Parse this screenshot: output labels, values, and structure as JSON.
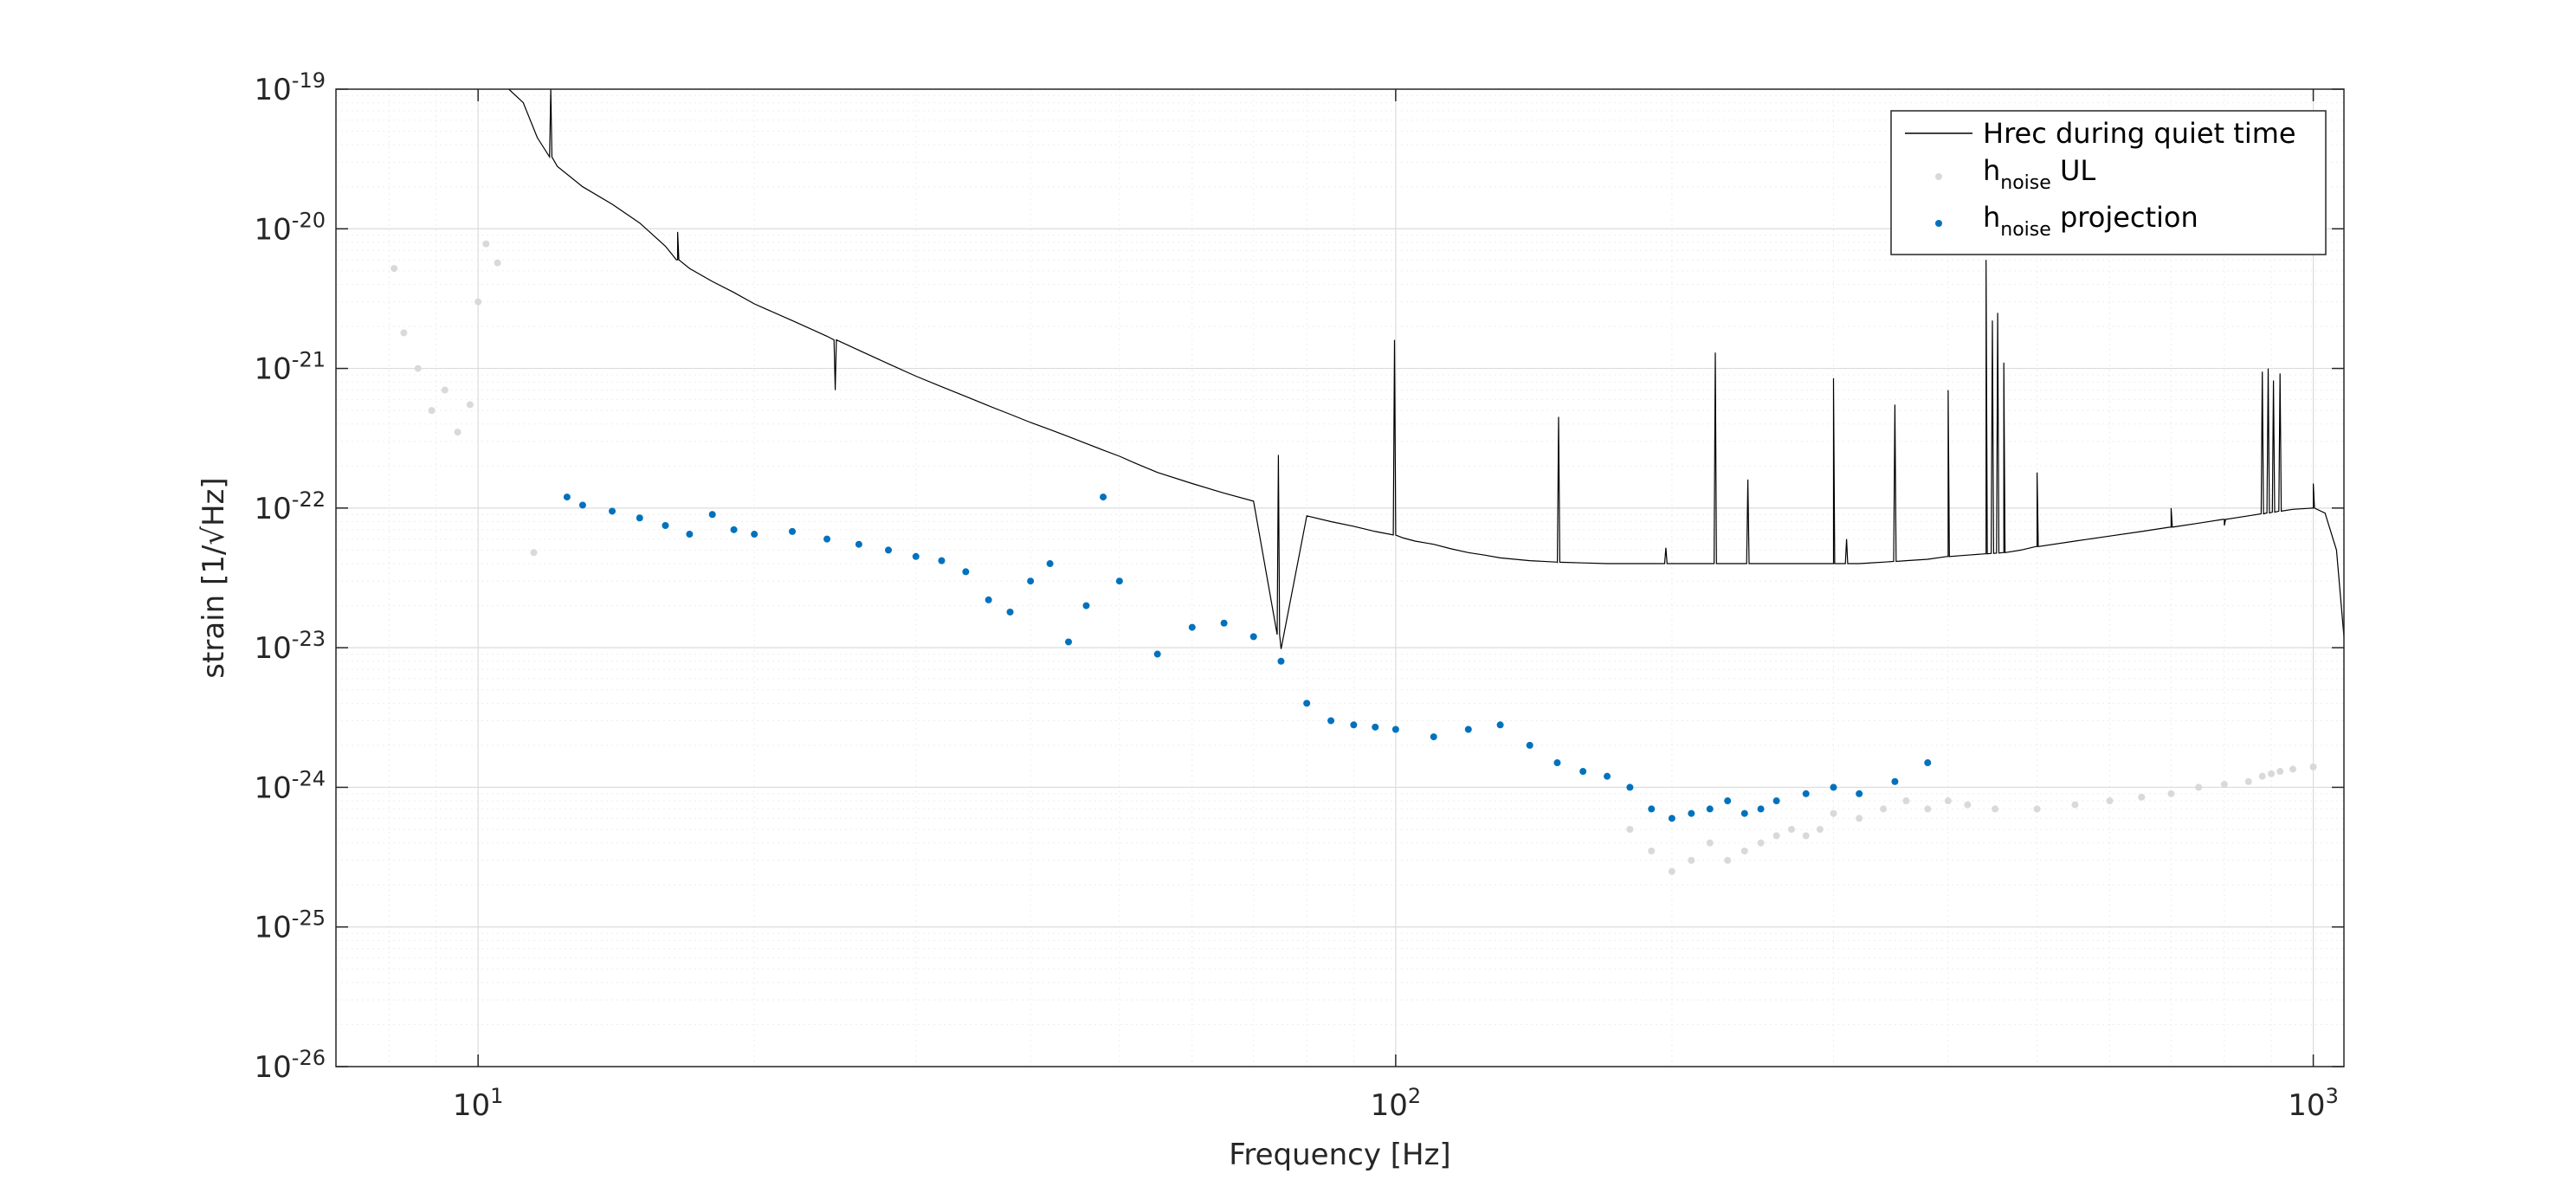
{
  "chart_data": {
    "type": "scatter",
    "xlabel": "Frequency [Hz]",
    "ylabel": "strain [1/√Hz]",
    "x_scale": "log",
    "y_scale": "log",
    "xlim": [
      7,
      1080
    ],
    "ylim": [
      1e-26,
      1e-19
    ],
    "grid": true,
    "legend_position": "top-right",
    "x_ticks": [
      {
        "value": 10,
        "base": "10",
        "exp": "1"
      },
      {
        "value": 100,
        "base": "10",
        "exp": "2"
      },
      {
        "value": 1000,
        "base": "10",
        "exp": "3"
      }
    ],
    "y_ticks": [
      {
        "value": 1e-19,
        "base": "10",
        "exp": "-19"
      },
      {
        "value": 1e-20,
        "base": "10",
        "exp": "-20"
      },
      {
        "value": 1e-21,
        "base": "10",
        "exp": "-21"
      },
      {
        "value": 1e-22,
        "base": "10",
        "exp": "-22"
      },
      {
        "value": 1e-23,
        "base": "10",
        "exp": "-23"
      },
      {
        "value": 1e-24,
        "base": "10",
        "exp": "-24"
      },
      {
        "value": 1e-25,
        "base": "10",
        "exp": "-25"
      },
      {
        "value": 1e-26,
        "base": "10",
        "exp": "-26"
      }
    ],
    "series": [
      {
        "name": "Hrec during quiet time",
        "type": "line",
        "color": "#000000",
        "x": [
          10.8,
          11.2,
          11.6,
          12.2,
          13,
          14,
          15,
          16,
          16.5,
          17,
          18,
          19,
          20,
          22,
          24,
          26,
          28,
          30,
          32,
          34,
          36,
          38,
          40,
          42,
          44,
          46,
          48,
          50,
          52,
          55,
          60,
          65,
          70,
          75,
          80,
          85,
          90,
          95,
          100,
          102,
          105,
          110,
          115,
          120,
          125,
          130,
          140,
          150,
          160,
          170,
          180,
          190,
          200,
          210,
          220,
          230,
          240,
          250,
          260,
          270,
          280,
          290,
          300,
          320,
          340,
          360,
          380,
          400,
          420,
          440,
          460,
          480,
          500,
          550,
          600,
          650,
          700,
          750,
          800,
          850,
          900,
          950,
          1000,
          1030,
          1060,
          1080
        ],
        "y": [
          1e-19,
          8e-20,
          4.5e-20,
          2.8e-20,
          2e-20,
          1.5e-20,
          1.1e-20,
          7.5e-21,
          6e-21,
          5.2e-21,
          4.2e-21,
          3.5e-21,
          2.9e-21,
          2.2e-21,
          1.7e-21,
          1.35e-21,
          1.08e-21,
          8.8e-22,
          7.4e-22,
          6.3e-22,
          5.4e-22,
          4.7e-22,
          4.1e-22,
          3.65e-22,
          3.25e-22,
          2.9e-22,
          2.6e-22,
          2.35e-22,
          2.1e-22,
          1.8e-22,
          1.5e-22,
          1.28e-22,
          1.12e-22,
          9.8e-24,
          8.8e-23,
          8e-23,
          7.4e-23,
          6.8e-23,
          6.4e-23,
          6.1e-23,
          5.8e-23,
          5.5e-23,
          5.1e-23,
          4.8e-23,
          4.6e-23,
          4.4e-23,
          4.2e-23,
          4.1e-23,
          4.05e-23,
          4e-23,
          4e-23,
          4e-23,
          4e-23,
          4e-23,
          4e-23,
          4e-23,
          4e-23,
          4e-23,
          4e-23,
          4e-23,
          4e-23,
          4e-23,
          4e-23,
          4e-23,
          4.1e-23,
          4.2e-23,
          4.3e-23,
          4.5e-23,
          4.6e-23,
          4.7e-23,
          4.8e-23,
          5e-23,
          5.3e-23,
          5.8e-23,
          6.3e-23,
          6.8e-23,
          7.3e-23,
          7.8e-23,
          8.3e-23,
          8.8e-23,
          9.3e-23,
          9.8e-23,
          1e-22,
          9.2e-23,
          5e-23,
          1.2e-23
        ],
        "peaks": [
          {
            "f": 12.0,
            "y": 1e-19
          },
          {
            "f": 16.5,
            "y": 9.5e-21
          },
          {
            "f": 24.5,
            "y": 7e-22
          },
          {
            "f": 74.5,
            "y": 2.4e-22
          },
          {
            "f": 99.7,
            "y": 1.6e-21
          },
          {
            "f": 150.5,
            "y": 4.5e-22
          },
          {
            "f": 197,
            "y": 5.2e-23
          },
          {
            "f": 223,
            "y": 1.3e-21
          },
          {
            "f": 242,
            "y": 1.6e-22
          },
          {
            "f": 300,
            "y": 8.5e-22
          },
          {
            "f": 310,
            "y": 6e-23
          },
          {
            "f": 350,
            "y": 5.5e-22
          },
          {
            "f": 400,
            "y": 7e-22
          },
          {
            "f": 440,
            "y": 6e-21
          },
          {
            "f": 447,
            "y": 2.2e-21
          },
          {
            "f": 453,
            "y": 2.5e-21
          },
          {
            "f": 460,
            "y": 1.1e-21
          },
          {
            "f": 500,
            "y": 1.8e-22
          },
          {
            "f": 700,
            "y": 1e-22
          },
          {
            "f": 800,
            "y": 7.5e-23
          },
          {
            "f": 880,
            "y": 9.5e-22
          },
          {
            "f": 893,
            "y": 1e-21
          },
          {
            "f": 905,
            "y": 8.2e-22
          },
          {
            "f": 920,
            "y": 9.2e-22
          },
          {
            "f": 1000,
            "y": 1.5e-22
          }
        ]
      },
      {
        "name": "h_noise UL",
        "type": "scatter",
        "color": "#d9d9d9",
        "x": [
          8.1,
          8.3,
          8.6,
          8.9,
          9.2,
          9.5,
          9.8,
          10.0,
          10.2,
          10.5,
          11.5,
          180,
          190,
          200,
          210,
          220,
          230,
          240,
          250,
          260,
          270,
          280,
          290,
          300,
          320,
          340,
          360,
          380,
          400,
          420,
          450,
          500,
          550,
          600,
          650,
          700,
          750,
          800,
          850,
          880,
          900,
          920,
          950,
          1000
        ],
        "y": [
          5.2e-21,
          1.8e-21,
          1e-21,
          5e-22,
          7e-22,
          3.5e-22,
          5.5e-22,
          3e-21,
          7.8e-21,
          5.7e-21,
          4.8e-23,
          5e-25,
          3.5e-25,
          2.5e-25,
          3e-25,
          4e-25,
          3e-25,
          3.5e-25,
          4e-25,
          4.5e-25,
          5e-25,
          4.5e-25,
          5e-25,
          6.5e-25,
          6e-25,
          7e-25,
          8e-25,
          7e-25,
          8e-25,
          7.5e-25,
          7e-25,
          7e-25,
          7.5e-25,
          8e-25,
          8.5e-25,
          9e-25,
          1e-24,
          1.05e-24,
          1.1e-24,
          1.2e-24,
          1.25e-24,
          1.3e-24,
          1.35e-24,
          1.4e-24
        ]
      },
      {
        "name": "h_noise projection",
        "type": "scatter",
        "color": "#0072bd",
        "x": [
          12.5,
          13,
          14,
          15,
          16,
          17,
          18,
          19,
          20,
          22,
          24,
          26,
          28,
          30,
          32,
          34,
          36,
          38,
          40,
          42,
          44,
          46,
          48,
          50,
          55,
          60,
          65,
          70,
          75,
          80,
          85,
          90,
          95,
          100,
          110,
          120,
          130,
          140,
          150,
          160,
          170,
          180,
          190,
          200,
          210,
          220,
          230,
          240,
          250,
          260,
          280,
          300,
          320,
          350,
          380
        ],
        "y": [
          1.2e-22,
          1.05e-22,
          9.5e-23,
          8.5e-23,
          7.5e-23,
          6.5e-23,
          9e-23,
          7e-23,
          6.5e-23,
          6.8e-23,
          6e-23,
          5.5e-23,
          5e-23,
          4.5e-23,
          4.2e-23,
          3.5e-23,
          2.2e-23,
          1.8e-23,
          3e-23,
          4e-23,
          1.1e-23,
          2e-23,
          1.2e-22,
          3e-23,
          9e-24,
          1.4e-23,
          1.5e-23,
          1.2e-23,
          8e-24,
          4e-24,
          3e-24,
          2.8e-24,
          2.7e-24,
          2.6e-24,
          2.3e-24,
          2.6e-24,
          2.8e-24,
          2e-24,
          1.5e-24,
          1.3e-24,
          1.2e-24,
          1e-24,
          7e-25,
          6e-25,
          6.5e-25,
          7e-25,
          8e-25,
          6.5e-25,
          7e-25,
          8e-25,
          9e-25,
          1e-24,
          9e-25,
          1.1e-24,
          1.5e-24
        ]
      }
    ]
  }
}
